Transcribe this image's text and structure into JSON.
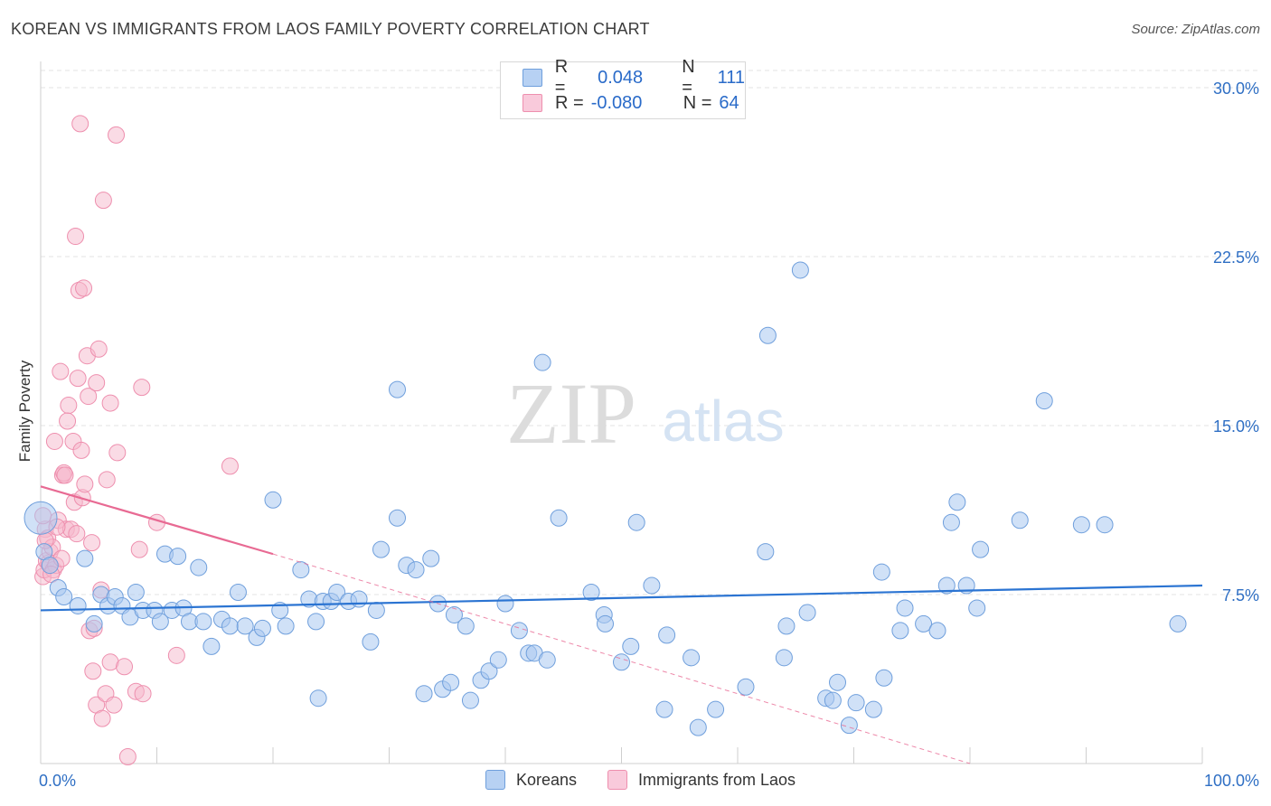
{
  "title": "KOREAN VS IMMIGRANTS FROM LAOS FAMILY POVERTY CORRELATION CHART",
  "source": "Source: ZipAtlas.com",
  "watermark": {
    "zip": "ZIP",
    "atlas": "atlas"
  },
  "legend": {
    "koreans": {
      "r_label": "R =",
      "r_value": "0.048",
      "n_label": "N =",
      "n_value": "111"
    },
    "laos": {
      "r_label": "R =",
      "r_value": "-0.080",
      "n_label": "N =",
      "n_value": "64"
    }
  },
  "bottom_legend": {
    "koreans": "Koreans",
    "laos": "Immigrants from Laos"
  },
  "colors": {
    "blue_fill": "#a9c8f0",
    "blue_stroke": "#6f9fdc",
    "blue_line": "#2b74d2",
    "pink_fill": "#f6b8cc",
    "pink_stroke": "#ee8fae",
    "pink_line": "#e86a93",
    "grid": "#e3e3e3",
    "axis_text": "#2f6fc4"
  },
  "chart_data": {
    "type": "scatter",
    "title": "KOREAN VS IMMIGRANTS FROM LAOS FAMILY POVERTY CORRELATION CHART",
    "xlabel": "",
    "ylabel": "Family Poverty",
    "xlim": [
      0,
      100
    ],
    "ylim": [
      0,
      30
    ],
    "x_tick_labels": [
      "0.0%",
      "100.0%"
    ],
    "y_ticks": [
      7.5,
      15.0,
      22.5,
      30.0
    ],
    "y_tick_labels": [
      "7.5%",
      "15.0%",
      "22.5%",
      "30.0%"
    ],
    "series": [
      {
        "name": "Koreans",
        "trend": {
          "x": [
            0,
            100
          ],
          "y": [
            6.8,
            7.9
          ]
        },
        "points": [
          {
            "x": 0.0,
            "y": 10.9,
            "size": 18
          },
          {
            "x": 0.3,
            "y": 9.4
          },
          {
            "x": 0.8,
            "y": 8.8
          },
          {
            "x": 1.5,
            "y": 7.8
          },
          {
            "x": 2.0,
            "y": 7.4
          },
          {
            "x": 3.2,
            "y": 7.0
          },
          {
            "x": 3.8,
            "y": 9.1
          },
          {
            "x": 4.6,
            "y": 6.2
          },
          {
            "x": 5.2,
            "y": 7.5
          },
          {
            "x": 5.8,
            "y": 7.0
          },
          {
            "x": 6.4,
            "y": 7.4
          },
          {
            "x": 7.0,
            "y": 7.0
          },
          {
            "x": 7.7,
            "y": 6.5
          },
          {
            "x": 8.2,
            "y": 7.6
          },
          {
            "x": 8.8,
            "y": 6.8
          },
          {
            "x": 9.8,
            "y": 6.8
          },
          {
            "x": 10.3,
            "y": 6.3
          },
          {
            "x": 10.7,
            "y": 9.3
          },
          {
            "x": 11.3,
            "y": 6.8
          },
          {
            "x": 11.8,
            "y": 9.2
          },
          {
            "x": 12.3,
            "y": 6.9
          },
          {
            "x": 12.8,
            "y": 6.3
          },
          {
            "x": 13.6,
            "y": 8.7
          },
          {
            "x": 14.0,
            "y": 6.3
          },
          {
            "x": 14.7,
            "y": 5.2
          },
          {
            "x": 15.6,
            "y": 6.4
          },
          {
            "x": 16.3,
            "y": 6.1
          },
          {
            "x": 17.0,
            "y": 7.6
          },
          {
            "x": 17.6,
            "y": 6.1
          },
          {
            "x": 18.6,
            "y": 5.6
          },
          {
            "x": 19.1,
            "y": 6.0
          },
          {
            "x": 20.0,
            "y": 11.7
          },
          {
            "x": 20.6,
            "y": 6.8
          },
          {
            "x": 21.1,
            "y": 6.1
          },
          {
            "x": 22.4,
            "y": 8.6
          },
          {
            "x": 23.1,
            "y": 7.3
          },
          {
            "x": 23.7,
            "y": 6.3
          },
          {
            "x": 24.3,
            "y": 7.2
          },
          {
            "x": 25.0,
            "y": 7.2
          },
          {
            "x": 25.5,
            "y": 7.6
          },
          {
            "x": 26.5,
            "y": 7.2
          },
          {
            "x": 27.4,
            "y": 7.3
          },
          {
            "x": 23.9,
            "y": 2.9
          },
          {
            "x": 28.4,
            "y": 5.4
          },
          {
            "x": 28.9,
            "y": 6.8
          },
          {
            "x": 29.3,
            "y": 9.5
          },
          {
            "x": 30.7,
            "y": 16.6
          },
          {
            "x": 30.7,
            "y": 10.9
          },
          {
            "x": 31.5,
            "y": 8.8
          },
          {
            "x": 32.3,
            "y": 8.6
          },
          {
            "x": 33.0,
            "y": 3.1
          },
          {
            "x": 33.6,
            "y": 9.1
          },
          {
            "x": 34.2,
            "y": 7.1
          },
          {
            "x": 34.6,
            "y": 3.3
          },
          {
            "x": 35.3,
            "y": 3.6
          },
          {
            "x": 35.6,
            "y": 6.6
          },
          {
            "x": 36.6,
            "y": 6.1
          },
          {
            "x": 37.0,
            "y": 2.8
          },
          {
            "x": 37.9,
            "y": 3.7
          },
          {
            "x": 38.6,
            "y": 4.1
          },
          {
            "x": 40.0,
            "y": 7.1
          },
          {
            "x": 39.4,
            "y": 4.6
          },
          {
            "x": 41.2,
            "y": 5.9
          },
          {
            "x": 42.0,
            "y": 4.9
          },
          {
            "x": 42.5,
            "y": 4.9
          },
          {
            "x": 43.2,
            "y": 17.8
          },
          {
            "x": 43.6,
            "y": 4.6
          },
          {
            "x": 44.6,
            "y": 10.9
          },
          {
            "x": 47.4,
            "y": 7.6
          },
          {
            "x": 48.5,
            "y": 6.6
          },
          {
            "x": 48.6,
            "y": 6.2
          },
          {
            "x": 50.0,
            "y": 4.5
          },
          {
            "x": 50.8,
            "y": 5.2
          },
          {
            "x": 51.3,
            "y": 10.7
          },
          {
            "x": 52.6,
            "y": 7.9
          },
          {
            "x": 53.7,
            "y": 2.4
          },
          {
            "x": 53.9,
            "y": 5.7
          },
          {
            "x": 56.6,
            "y": 1.6
          },
          {
            "x": 56.0,
            "y": 4.7
          },
          {
            "x": 58.1,
            "y": 2.4
          },
          {
            "x": 60.7,
            "y": 3.4
          },
          {
            "x": 62.4,
            "y": 9.4
          },
          {
            "x": 62.6,
            "y": 19.0
          },
          {
            "x": 64.0,
            "y": 4.7
          },
          {
            "x": 64.2,
            "y": 6.1
          },
          {
            "x": 65.4,
            "y": 21.9
          },
          {
            "x": 66.0,
            "y": 6.7
          },
          {
            "x": 67.6,
            "y": 2.9
          },
          {
            "x": 68.2,
            "y": 2.8
          },
          {
            "x": 68.6,
            "y": 3.6
          },
          {
            "x": 69.6,
            "y": 1.7
          },
          {
            "x": 70.2,
            "y": 2.7
          },
          {
            "x": 71.7,
            "y": 2.4
          },
          {
            "x": 72.4,
            "y": 8.5
          },
          {
            "x": 72.6,
            "y": 3.8
          },
          {
            "x": 74.0,
            "y": 5.9
          },
          {
            "x": 74.4,
            "y": 6.9
          },
          {
            "x": 76.0,
            "y": 6.2
          },
          {
            "x": 77.2,
            "y": 5.9
          },
          {
            "x": 78.0,
            "y": 7.9
          },
          {
            "x": 78.4,
            "y": 10.7
          },
          {
            "x": 78.9,
            "y": 11.6
          },
          {
            "x": 79.7,
            "y": 7.9
          },
          {
            "x": 80.6,
            "y": 6.9
          },
          {
            "x": 80.9,
            "y": 9.5
          },
          {
            "x": 84.3,
            "y": 10.8
          },
          {
            "x": 86.4,
            "y": 16.1
          },
          {
            "x": 89.6,
            "y": 10.6
          },
          {
            "x": 91.6,
            "y": 10.6
          },
          {
            "x": 97.9,
            "y": 6.2
          }
        ]
      },
      {
        "name": "Immigrants from Laos",
        "trend": {
          "x": [
            0,
            20
          ],
          "y": [
            12.3,
            9.3
          ]
        },
        "trend_extension": {
          "x": [
            20,
            80
          ],
          "y": [
            9.3,
            0.0
          ]
        },
        "points": [
          {
            "x": 0.2,
            "y": 8.3
          },
          {
            "x": 0.3,
            "y": 8.6
          },
          {
            "x": 0.4,
            "y": 10.4
          },
          {
            "x": 0.5,
            "y": 9.0
          },
          {
            "x": 0.6,
            "y": 10.0
          },
          {
            "x": 0.7,
            "y": 8.9
          },
          {
            "x": 0.8,
            "y": 9.4
          },
          {
            "x": 1.0,
            "y": 9.6
          },
          {
            "x": 1.1,
            "y": 8.6
          },
          {
            "x": 1.3,
            "y": 8.8
          },
          {
            "x": 1.5,
            "y": 10.8
          },
          {
            "x": 1.7,
            "y": 17.4
          },
          {
            "x": 1.9,
            "y": 12.8
          },
          {
            "x": 2.0,
            "y": 12.9
          },
          {
            "x": 2.2,
            "y": 10.4
          },
          {
            "x": 2.4,
            "y": 15.9
          },
          {
            "x": 2.3,
            "y": 15.2
          },
          {
            "x": 2.6,
            "y": 10.4
          },
          {
            "x": 2.8,
            "y": 14.3
          },
          {
            "x": 2.9,
            "y": 11.6
          },
          {
            "x": 3.0,
            "y": 23.4
          },
          {
            "x": 3.2,
            "y": 17.1
          },
          {
            "x": 3.3,
            "y": 21.0
          },
          {
            "x": 3.4,
            "y": 28.4
          },
          {
            "x": 3.5,
            "y": 13.9
          },
          {
            "x": 3.6,
            "y": 11.8
          },
          {
            "x": 3.7,
            "y": 21.1
          },
          {
            "x": 3.8,
            "y": 12.4
          },
          {
            "x": 4.0,
            "y": 18.1
          },
          {
            "x": 4.1,
            "y": 16.3
          },
          {
            "x": 4.2,
            "y": 5.9
          },
          {
            "x": 4.4,
            "y": 9.8
          },
          {
            "x": 4.5,
            "y": 4.1
          },
          {
            "x": 4.6,
            "y": 6.0
          },
          {
            "x": 4.8,
            "y": 2.6
          },
          {
            "x": 4.8,
            "y": 16.9
          },
          {
            "x": 5.0,
            "y": 18.4
          },
          {
            "x": 5.2,
            "y": 7.7
          },
          {
            "x": 5.3,
            "y": 2.0
          },
          {
            "x": 5.4,
            "y": 25.0
          },
          {
            "x": 5.6,
            "y": 3.1
          },
          {
            "x": 5.7,
            "y": 12.6
          },
          {
            "x": 6.0,
            "y": 16.0
          },
          {
            "x": 6.0,
            "y": 4.5
          },
          {
            "x": 6.3,
            "y": 2.6
          },
          {
            "x": 6.5,
            "y": 27.9
          },
          {
            "x": 6.6,
            "y": 13.8
          },
          {
            "x": 7.2,
            "y": 4.3
          },
          {
            "x": 7.5,
            "y": 0.3
          },
          {
            "x": 8.2,
            "y": 3.2
          },
          {
            "x": 8.5,
            "y": 9.5
          },
          {
            "x": 8.8,
            "y": 3.1
          },
          {
            "x": 8.7,
            "y": 16.7
          },
          {
            "x": 10.0,
            "y": 10.7
          },
          {
            "x": 11.7,
            "y": 4.8
          },
          {
            "x": 16.3,
            "y": 13.2
          },
          {
            "x": 0.2,
            "y": 11.0
          },
          {
            "x": 0.9,
            "y": 8.4
          },
          {
            "x": 1.2,
            "y": 14.3
          },
          {
            "x": 1.8,
            "y": 9.1
          },
          {
            "x": 2.1,
            "y": 12.8
          },
          {
            "x": 0.4,
            "y": 9.9
          },
          {
            "x": 1.4,
            "y": 10.5
          },
          {
            "x": 3.1,
            "y": 10.2
          }
        ]
      }
    ]
  }
}
